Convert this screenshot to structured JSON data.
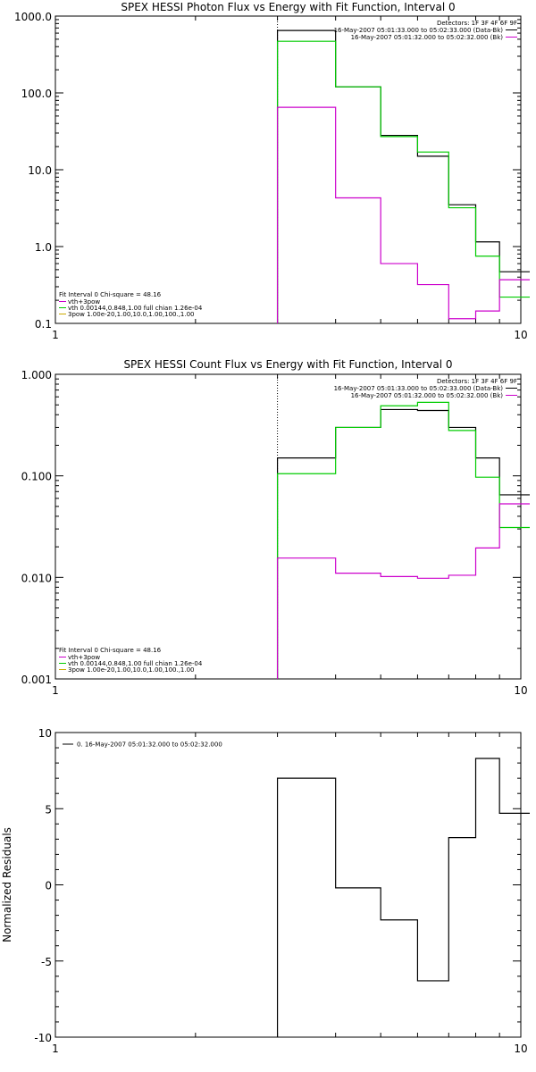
{
  "chart_data": [
    {
      "type": "line",
      "title": "SPEX HESSI Photon Flux vs Energy with Fit Function, Interval 0",
      "xscale": "log",
      "yscale": "log",
      "xlim": [
        1,
        10
      ],
      "ylim": [
        0.1,
        1000
      ],
      "xticks": [
        "1",
        "10"
      ],
      "yticks": [
        "0.1",
        "1.0",
        "10.0",
        "100.0",
        "1000.0"
      ],
      "vline_x": 3,
      "series": [
        {
          "color": "#000000",
          "edges": [
            3,
            4,
            5,
            6,
            7,
            8,
            9,
            10,
            10.5
          ],
          "values": [
            650,
            120,
            28,
            15,
            3.5,
            1.15,
            0.47,
            0.47
          ]
        },
        {
          "color": "#00cc00",
          "edges": [
            3,
            4,
            5,
            6,
            7,
            8,
            9,
            10,
            10.5
          ],
          "values": [
            470,
            120,
            27,
            17,
            3.2,
            0.75,
            0.22,
            0.22
          ]
        },
        {
          "color": "#cc00cc",
          "edges": [
            3,
            4,
            5,
            6,
            7,
            8,
            9,
            10,
            10.5
          ],
          "values": [
            65,
            4.3,
            0.6,
            0.32,
            0.115,
            0.145,
            0.37,
            0.37
          ]
        }
      ],
      "legend_top": {
        "line1": "Detectors: 1F 3F 4F 6F 9F",
        "entries": [
          {
            "text": "16-May-2007 05:01:33.000 to 05:02:33.000 (Data-Bk)",
            "color": "#000000"
          },
          {
            "text": "16-May-2007 05:01:32.000 to 05:02:32.000 (Bk)",
            "color": "#cc00cc"
          }
        ]
      },
      "legend_bottom": {
        "header": "Fit Interval 0   Chi-square = 48.16",
        "entries": [
          {
            "text": "vth+3pow",
            "color": "#cc00cc"
          },
          {
            "text": "vth 0.00144,0.848,1.00  full chian 1.26e-04",
            "color": "#00cc00"
          },
          {
            "text": "3pow 1.00e-20,1.00,10.0,1.00,100.,1.00",
            "color": "#ccaa00"
          }
        ]
      }
    },
    {
      "type": "line",
      "title": "SPEX HESSI Count Flux vs Energy with Fit Function, Interval 0",
      "xscale": "log",
      "yscale": "log",
      "xlim": [
        1,
        10
      ],
      "ylim": [
        0.001,
        1
      ],
      "xticks": [
        "1",
        "10"
      ],
      "yticks": [
        "0.001",
        "0.010",
        "0.100",
        "1.000"
      ],
      "vline_x": 3,
      "series": [
        {
          "color": "#000000",
          "edges": [
            3,
            4,
            5,
            6,
            7,
            8,
            9,
            10,
            10.5
          ],
          "values": [
            0.15,
            0.3,
            0.45,
            0.44,
            0.3,
            0.15,
            0.065,
            0.065
          ]
        },
        {
          "color": "#00cc00",
          "edges": [
            3,
            4,
            5,
            6,
            7,
            8,
            9,
            10,
            10.5
          ],
          "values": [
            0.105,
            0.3,
            0.49,
            0.53,
            0.28,
            0.097,
            0.031,
            0.031
          ]
        },
        {
          "color": "#cc00cc",
          "edges": [
            3,
            4,
            5,
            6,
            7,
            8,
            9,
            10,
            10.5
          ],
          "values": [
            0.0155,
            0.011,
            0.0102,
            0.0098,
            0.0105,
            0.0195,
            0.053,
            0.053
          ]
        }
      ],
      "legend_top": {
        "line1": "Detectors: 1F 3F 4F 6F 9F",
        "entries": [
          {
            "text": "16-May-2007 05:01:33.000 to 05:02:33.000 (Data-Bk)",
            "color": "#000000"
          },
          {
            "text": "16-May-2007 05:01:32.000 to 05:02:32.000 (Bk)",
            "color": "#cc00cc"
          }
        ]
      },
      "legend_bottom": {
        "header": "Fit Interval 0   Chi-square = 48.16",
        "entries": [
          {
            "text": "vth+3pow",
            "color": "#cc00cc"
          },
          {
            "text": "vth 0.00144,0.848,1.00  full chian 1.26e-04",
            "color": "#00cc00"
          },
          {
            "text": "3pow 1.00e-20,1.00,10.0,1.00,100.,1.00",
            "color": "#ccaa00"
          }
        ]
      }
    },
    {
      "type": "line",
      "title": "",
      "xscale": "log",
      "yscale": "linear",
      "xlim": [
        1,
        10
      ],
      "ylim": [
        -10,
        10
      ],
      "xticks": [
        "1",
        "10"
      ],
      "yticks": [
        "-10",
        "-5",
        "0",
        "5",
        "10"
      ],
      "ylabel": "Normalized Residuals",
      "series": [
        {
          "color": "#000000",
          "edges": [
            3,
            4,
            5,
            6,
            7,
            8,
            9,
            10,
            10.5
          ],
          "values": [
            7.0,
            -0.2,
            -2.3,
            -6.3,
            3.1,
            8.3,
            4.7,
            4.7
          ],
          "start_at_bottom": true
        }
      ],
      "legend_top": {
        "entries": [
          {
            "text": "0. 16-May-2007 05:01:32.000 to 05:02:32.000",
            "color": "#000000"
          }
        ]
      }
    }
  ]
}
